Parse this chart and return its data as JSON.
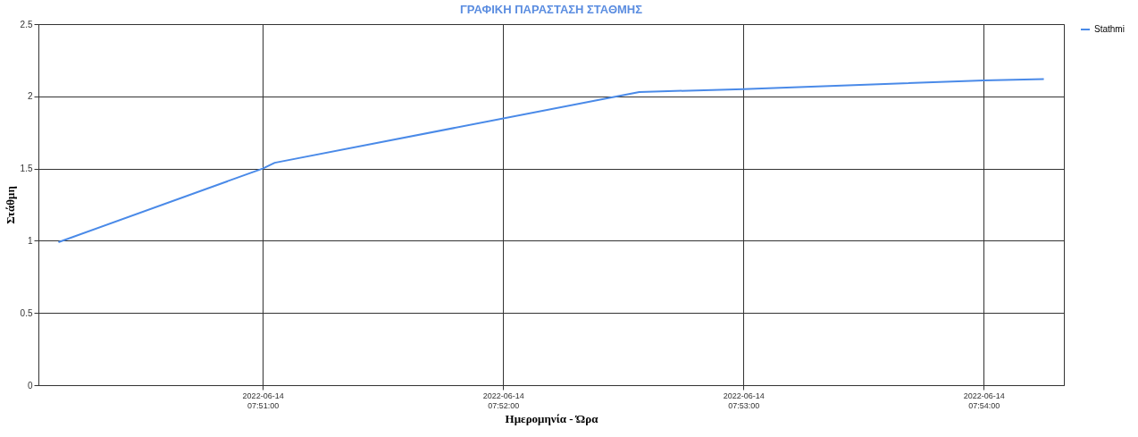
{
  "chart_data": {
    "type": "line",
    "title": "ΓΡΑΦΙΚΗ ΠΑΡΑΣΤΑΣΗ ΣΤΑΘΜΗΣ",
    "xlabel": "Ημερομηνία - Ώρα",
    "ylabel": "Στάθμη",
    "x": [
      "2022-06-14T07:50:09",
      "2022-06-14T07:51:00",
      "2022-06-14T07:51:03",
      "2022-06-14T07:52:34",
      "2022-06-14T07:53:00",
      "2022-06-14T07:54:00",
      "2022-06-14T07:54:15"
    ],
    "series": [
      {
        "name": "Stathmi",
        "color": "#4a8ae8",
        "values": [
          0.99,
          1.5,
          1.54,
          2.03,
          2.05,
          2.11,
          2.12
        ]
      }
    ],
    "xlim": [
      "2022-06-14T07:50:04",
      "2022-06-14T07:54:20"
    ],
    "xticks": [
      {
        "value": "2022-06-14T07:51:00",
        "label": "2022-06-14\n07:51:00"
      },
      {
        "value": "2022-06-14T07:52:00",
        "label": "2022-06-14\n07:52:00"
      },
      {
        "value": "2022-06-14T07:53:00",
        "label": "2022-06-14\n07:53:00"
      },
      {
        "value": "2022-06-14T07:54:00",
        "label": "2022-06-14\n07:54:00"
      }
    ],
    "ylim": [
      0,
      2.5
    ],
    "yticks": [
      0,
      0.5,
      1,
      1.5,
      2,
      2.5
    ],
    "grid": true,
    "legend": "top right",
    "line_style": "solid",
    "marker": "none"
  }
}
